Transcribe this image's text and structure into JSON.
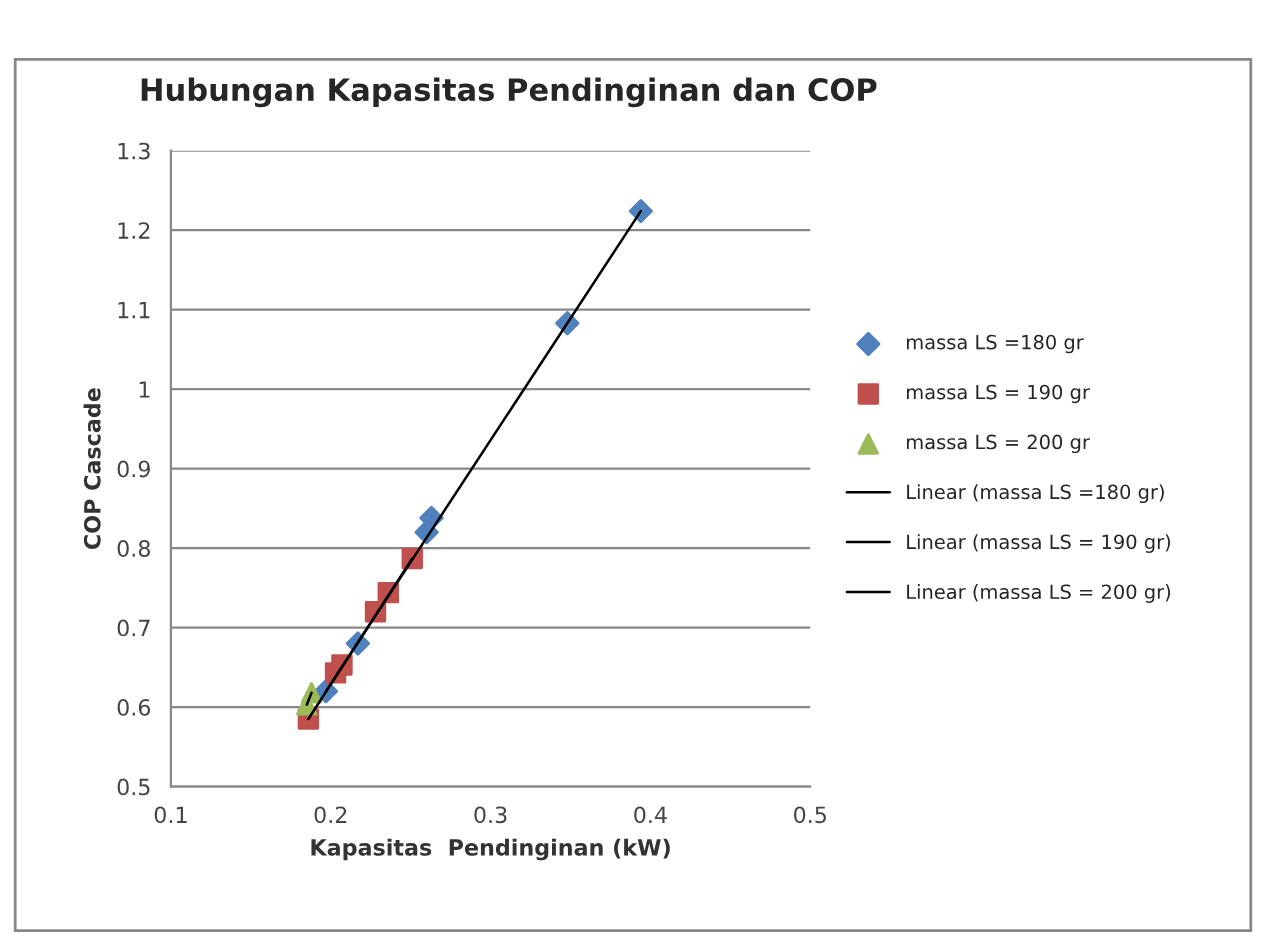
{
  "chart_data": {
    "type": "scatter",
    "title": "Hubungan Kapasitas Pendinginan dan COP",
    "xlabel": "Kapasitas  Pendinginan (kW)",
    "ylabel": "COP Cascade",
    "xlim": [
      0.1,
      0.5
    ],
    "xticks": [
      0.1,
      0.2,
      0.3,
      0.4,
      0.5
    ],
    "ylim": [
      0.5,
      1.3
    ],
    "yticks": [
      0.5,
      0.6,
      0.7,
      0.8,
      0.9,
      1,
      1.1,
      1.2,
      1.3
    ],
    "grid": "y",
    "legend": "right",
    "series": [
      {
        "name": "massa LS =180 gr",
        "color": "#4f81bd",
        "marker": "diamond",
        "x": [
          0.394,
          0.348,
          0.263,
          0.26,
          0.217,
          0.197
        ],
        "values": [
          1.224,
          1.083,
          0.838,
          0.82,
          0.68,
          0.62
        ]
      },
      {
        "name": "massa LS = 190 gr",
        "color": "#c0504d",
        "marker": "square",
        "x": [
          0.251,
          0.236,
          0.228,
          0.207,
          0.203,
          0.186
        ],
        "values": [
          0.787,
          0.744,
          0.72,
          0.653,
          0.643,
          0.585
        ]
      },
      {
        "name": "massa LS = 200 gr",
        "color": "#9bbb59",
        "marker": "triangle",
        "x": [
          0.188,
          0.185
        ],
        "values": [
          0.618,
          0.603
        ]
      },
      {
        "name": "Linear (massa LS =180 gr)",
        "type": "line",
        "color": "#000000",
        "marker": "none",
        "x": [
          0.197,
          0.394
        ],
        "values": [
          0.62,
          1.224
        ]
      },
      {
        "name": "Linear (massa LS = 190 gr)",
        "type": "line",
        "color": "#000000",
        "marker": "none",
        "x": [
          0.186,
          0.251
        ],
        "values": [
          0.585,
          0.787
        ]
      },
      {
        "name": "Linear (massa LS = 200 gr)",
        "type": "line",
        "color": "#000000",
        "marker": "none",
        "x": [
          0.185,
          0.188
        ],
        "values": [
          0.603,
          0.618
        ]
      }
    ]
  }
}
